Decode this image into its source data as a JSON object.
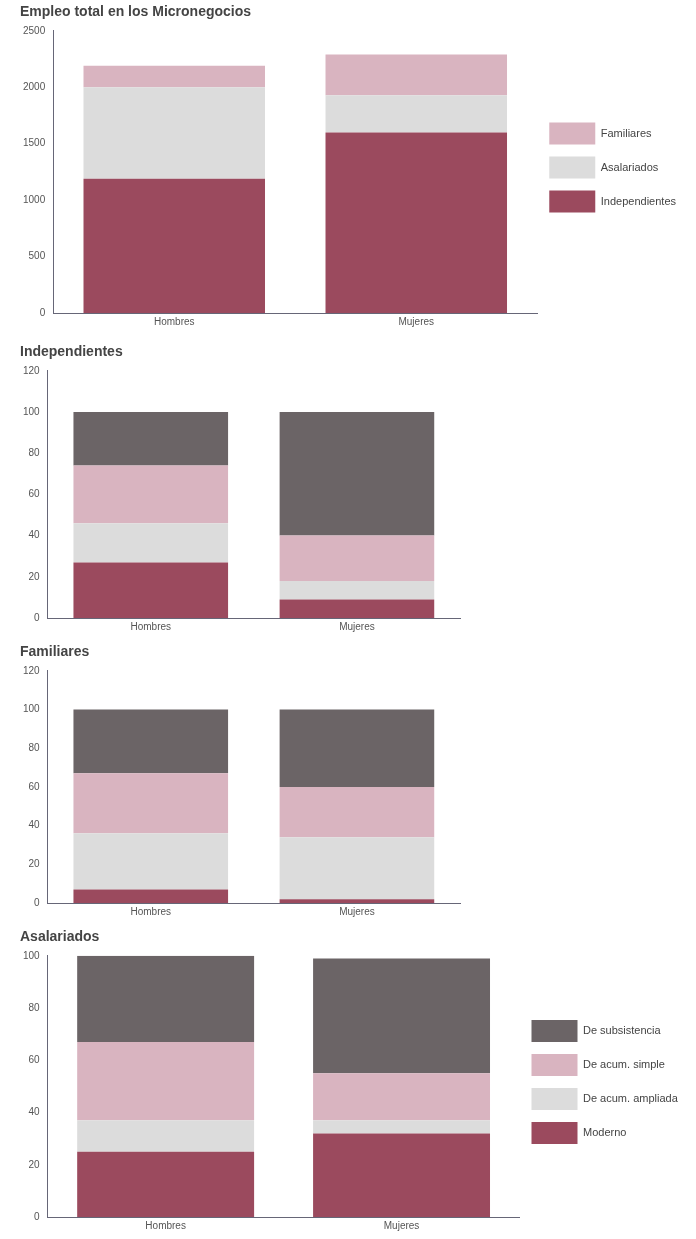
{
  "chart_data": [
    {
      "type": "bar",
      "title": "Empleo total en los Micronegocios",
      "categories": [
        "Hombres",
        "Mujeres"
      ],
      "stacked": true,
      "ylim": [
        0,
        2500
      ],
      "yticks": [
        0,
        500,
        1000,
        1500,
        2000,
        2500
      ],
      "grid": false,
      "legend": "right",
      "series": [
        {
          "name": "Independientes",
          "color": "#9b4a5e",
          "values": [
            1190,
            1600
          ]
        },
        {
          "name": "Asalariados",
          "color": "#dcdcdc",
          "values": [
            810,
            330
          ]
        },
        {
          "name": "Familiares",
          "color": "#d9b4c0",
          "values": [
            190,
            360
          ]
        }
      ]
    },
    {
      "type": "bar",
      "title": "Independientes",
      "categories": [
        "Hombres",
        "Mujeres"
      ],
      "stacked": true,
      "ylim": [
        0,
        120
      ],
      "yticks": [
        0,
        20,
        40,
        60,
        80,
        100,
        120
      ],
      "grid": false,
      "legend": false,
      "series": [
        {
          "color": "#9b4a5e",
          "values": [
            27,
            9
          ]
        },
        {
          "color": "#dcdcdc",
          "values": [
            19,
            9
          ]
        },
        {
          "color": "#d9b4c0",
          "values": [
            28,
            22
          ]
        },
        {
          "color": "#6b6466",
          "values": [
            26,
            60
          ]
        }
      ]
    },
    {
      "type": "bar",
      "title": "Familiares",
      "categories": [
        "Hombres",
        "Mujeres"
      ],
      "stacked": true,
      "ylim": [
        0,
        120
      ],
      "yticks": [
        0,
        20,
        40,
        60,
        80,
        100,
        120
      ],
      "grid": false,
      "legend": false,
      "series": [
        {
          "color": "#9b4a5e",
          "values": [
            7,
            2
          ]
        },
        {
          "color": "#dcdcdc",
          "values": [
            29,
            32
          ]
        },
        {
          "color": "#d9b4c0",
          "values": [
            31,
            26
          ]
        },
        {
          "color": "#6b6466",
          "values": [
            33,
            40
          ]
        }
      ]
    },
    {
      "type": "bar",
      "title": "Asalariados",
      "categories": [
        "Hombres",
        "Mujeres"
      ],
      "stacked": true,
      "ylim": [
        0,
        100
      ],
      "yticks": [
        0,
        20,
        40,
        60,
        80,
        100
      ],
      "grid": false,
      "legend": "right",
      "series": [
        {
          "name": "Moderno",
          "color": "#9b4a5e",
          "values": [
            25,
            32
          ]
        },
        {
          "name": "De acum. ampliada",
          "color": "#dcdcdc",
          "values": [
            12,
            5
          ]
        },
        {
          "name": "De acum. simple",
          "color": "#d9b4c0",
          "values": [
            30,
            18
          ]
        },
        {
          "name": "De subsistencia",
          "color": "#6b6466",
          "values": [
            33,
            44
          ]
        }
      ]
    }
  ]
}
